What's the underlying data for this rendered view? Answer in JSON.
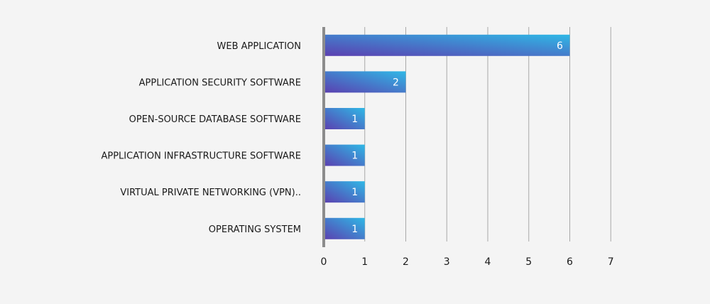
{
  "chart_data": {
    "type": "bar",
    "orientation": "horizontal",
    "categories": [
      "WEB APPLICATION",
      "APPLICATION SECURITY SOFTWARE",
      "OPEN-SOURCE DATABASE SOFTWARE",
      "APPLICATION INFRASTRUCTURE SOFTWARE",
      "VIRTUAL PRIVATE NETWORKING (VPN)..",
      "OPERATING SYSTEM"
    ],
    "values": [
      6,
      2,
      1,
      1,
      1,
      1
    ],
    "xlim": [
      0,
      7
    ],
    "xticks": [
      "0",
      "1",
      "2",
      "3",
      "4",
      "5",
      "6",
      "7"
    ],
    "grid": true,
    "data_labels": true,
    "colors": {
      "bar_gradient_start": "#5b3fb0",
      "bar_gradient_end": "#2fb8e6",
      "axis": "#8c8c8c",
      "gridline": "#a8a8a8",
      "background": "#f4f4f4"
    }
  }
}
